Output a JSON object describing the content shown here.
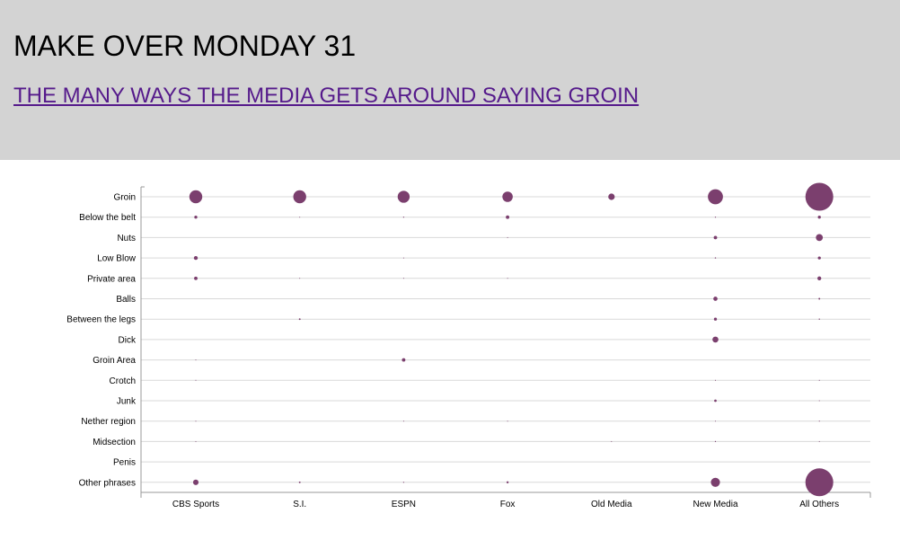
{
  "header": {
    "title": "MAKE OVER MONDAY 31",
    "subtitle": "THE MANY WAYS THE MEDIA GETS AROUND SAYING GROIN"
  },
  "colors": {
    "header_bg": "#d3d3d3",
    "bubble": "#7b3f6e",
    "link": "#551a8b",
    "gridline": "#d9d9d9"
  },
  "chart_data": {
    "type": "bubble",
    "title": "",
    "xlabel": "",
    "ylabel": "",
    "grid": "horizontal",
    "legend": "none",
    "x_categories": [
      "CBS Sports",
      "S.I.",
      "ESPN",
      "Fox",
      "Old Media",
      "New Media",
      "All Others"
    ],
    "y_categories": [
      "Groin",
      "Below the belt",
      "Nuts",
      "Low Blow",
      "Private area",
      "Balls",
      "Between the legs",
      "Dick",
      "Groin Area",
      "Crotch",
      "Junk",
      "Nether region",
      "Midsection",
      "Penis",
      "Other phrases"
    ],
    "size_values": [
      [
        56,
        56,
        48,
        36,
        14,
        76,
        260
      ],
      [
        3,
        0.2,
        0.4,
        4,
        0,
        0.4,
        3
      ],
      [
        0,
        0,
        0,
        0.1,
        0,
        4,
        16
      ],
      [
        5,
        0,
        0.1,
        0,
        0,
        0.5,
        3
      ],
      [
        4,
        0.2,
        0.1,
        0.1,
        0,
        0,
        5
      ],
      [
        0,
        0,
        0,
        0,
        0,
        6,
        1
      ],
      [
        0,
        1,
        0,
        0,
        0,
        3,
        0.5
      ],
      [
        0,
        0,
        0,
        0,
        0,
        12,
        0
      ],
      [
        0.1,
        0,
        4,
        0,
        0,
        0,
        0
      ],
      [
        0.1,
        0,
        0,
        0,
        0,
        0.3,
        0.3
      ],
      [
        0,
        0,
        0,
        0,
        0,
        2,
        0.1
      ],
      [
        0.1,
        0,
        0.1,
        0.1,
        0,
        0.1,
        0.3
      ],
      [
        0.1,
        0,
        0,
        0,
        0.1,
        0.4,
        0.1
      ],
      [
        0,
        0,
        0,
        0,
        0,
        0,
        0
      ],
      [
        10,
        1,
        0.4,
        1.5,
        0,
        28,
        260
      ]
    ]
  }
}
